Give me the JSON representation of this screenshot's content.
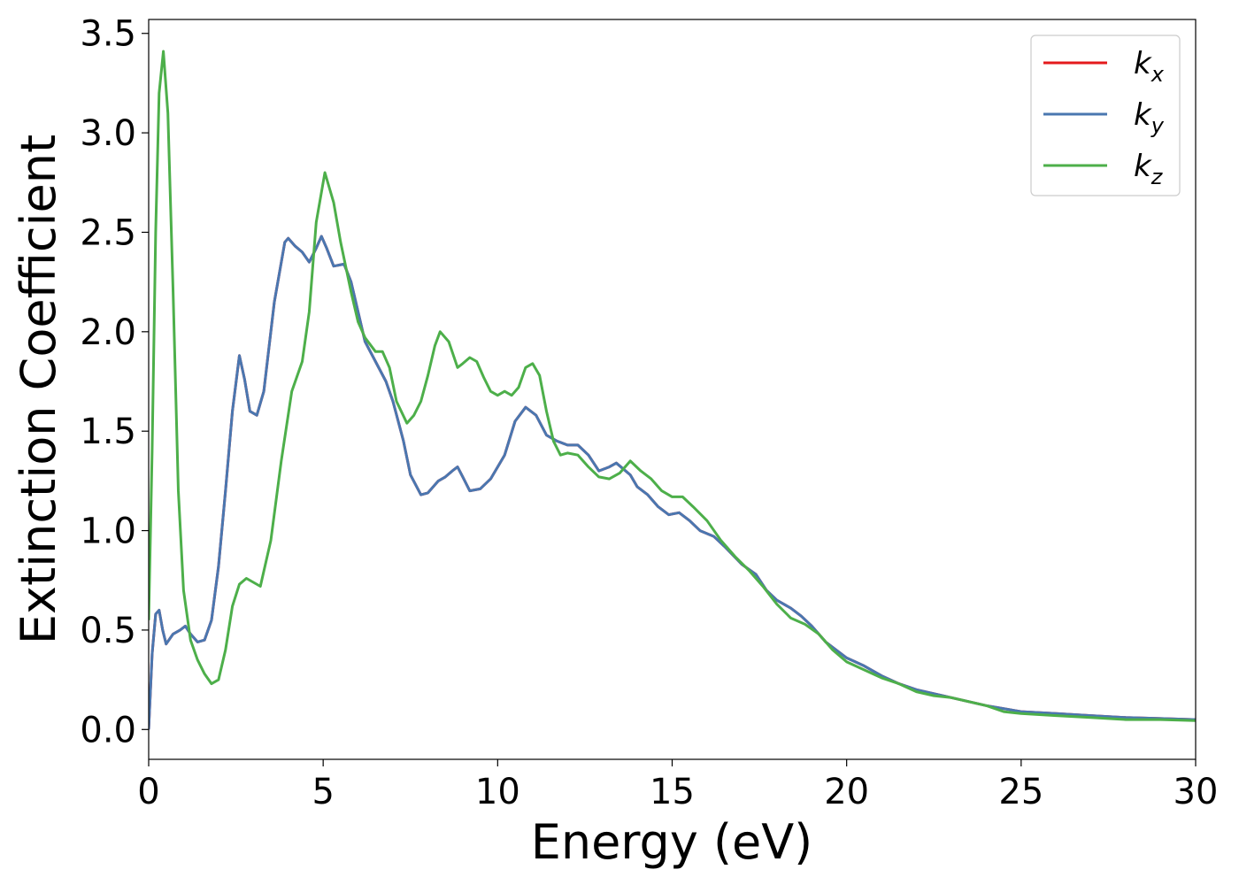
{
  "chart_data": {
    "type": "line",
    "title": "",
    "xlabel": "Energy (eV)",
    "ylabel": "Extinction Coefficient",
    "xlim": [
      0,
      30
    ],
    "ylim": [
      -0.15,
      3.57
    ],
    "xticks": [
      0,
      5,
      10,
      15,
      20,
      25,
      30
    ],
    "xtick_labels": [
      "0",
      "5",
      "10",
      "15",
      "20",
      "25",
      "30"
    ],
    "yticks": [
      0.0,
      0.5,
      1.0,
      1.5,
      2.0,
      2.5,
      3.0,
      3.5
    ],
    "ytick_labels": [
      "0.0",
      "0.5",
      "1.0",
      "1.5",
      "2.0",
      "2.5",
      "3.0",
      "3.5"
    ],
    "grid": false,
    "legend_position": "top-right",
    "series": [
      {
        "name": "k_x",
        "label_base": "k",
        "label_sub": "x",
        "color": "#e41a1c",
        "points": [
          [
            0,
            0
          ],
          [
            0.1,
            0.38
          ],
          [
            0.2,
            0.58
          ],
          [
            0.3,
            0.6
          ],
          [
            0.4,
            0.5
          ],
          [
            0.5,
            0.43
          ],
          [
            0.7,
            0.48
          ],
          [
            0.9,
            0.5
          ],
          [
            1.05,
            0.52
          ],
          [
            1.2,
            0.48
          ],
          [
            1.4,
            0.44
          ],
          [
            1.6,
            0.45
          ],
          [
            1.8,
            0.55
          ],
          [
            2.0,
            0.82
          ],
          [
            2.2,
            1.2
          ],
          [
            2.4,
            1.6
          ],
          [
            2.6,
            1.88
          ],
          [
            2.75,
            1.76
          ],
          [
            2.9,
            1.6
          ],
          [
            3.1,
            1.58
          ],
          [
            3.3,
            1.7
          ],
          [
            3.6,
            2.15
          ],
          [
            3.9,
            2.45
          ],
          [
            4.0,
            2.47
          ],
          [
            4.2,
            2.43
          ],
          [
            4.4,
            2.4
          ],
          [
            4.6,
            2.35
          ],
          [
            4.8,
            2.42
          ],
          [
            4.95,
            2.48
          ],
          [
            5.1,
            2.42
          ],
          [
            5.3,
            2.33
          ],
          [
            5.6,
            2.34
          ],
          [
            5.8,
            2.25
          ],
          [
            6.0,
            2.1
          ],
          [
            6.2,
            1.95
          ],
          [
            6.5,
            1.85
          ],
          [
            6.8,
            1.75
          ],
          [
            7.0,
            1.65
          ],
          [
            7.3,
            1.45
          ],
          [
            7.5,
            1.28
          ],
          [
            7.8,
            1.18
          ],
          [
            8.0,
            1.19
          ],
          [
            8.3,
            1.25
          ],
          [
            8.5,
            1.27
          ],
          [
            8.7,
            1.3
          ],
          [
            8.85,
            1.32
          ],
          [
            9.0,
            1.27
          ],
          [
            9.2,
            1.2
          ],
          [
            9.5,
            1.21
          ],
          [
            9.8,
            1.26
          ],
          [
            10.2,
            1.38
          ],
          [
            10.5,
            1.55
          ],
          [
            10.8,
            1.62
          ],
          [
            11.1,
            1.58
          ],
          [
            11.4,
            1.48
          ],
          [
            11.7,
            1.45
          ],
          [
            12.0,
            1.43
          ],
          [
            12.3,
            1.43
          ],
          [
            12.6,
            1.38
          ],
          [
            12.9,
            1.3
          ],
          [
            13.2,
            1.32
          ],
          [
            13.4,
            1.34
          ],
          [
            13.8,
            1.28
          ],
          [
            14.0,
            1.22
          ],
          [
            14.3,
            1.18
          ],
          [
            14.6,
            1.12
          ],
          [
            14.9,
            1.08
          ],
          [
            15.2,
            1.09
          ],
          [
            15.5,
            1.05
          ],
          [
            15.8,
            1.0
          ],
          [
            16.2,
            0.97
          ],
          [
            16.5,
            0.92
          ],
          [
            17.0,
            0.83
          ],
          [
            17.4,
            0.78
          ],
          [
            17.7,
            0.7
          ],
          [
            18.0,
            0.65
          ],
          [
            18.4,
            0.61
          ],
          [
            18.7,
            0.57
          ],
          [
            19.0,
            0.52
          ],
          [
            19.4,
            0.44
          ],
          [
            19.7,
            0.4
          ],
          [
            20.0,
            0.36
          ],
          [
            20.5,
            0.32
          ],
          [
            21.0,
            0.27
          ],
          [
            21.5,
            0.23
          ],
          [
            22.0,
            0.2
          ],
          [
            23.0,
            0.16
          ],
          [
            24.0,
            0.12
          ],
          [
            25.0,
            0.09
          ],
          [
            26.0,
            0.08
          ],
          [
            27.0,
            0.07
          ],
          [
            28.0,
            0.06
          ],
          [
            29.0,
            0.055
          ],
          [
            30.0,
            0.05
          ]
        ]
      },
      {
        "name": "k_y",
        "label_base": "k",
        "label_sub": "y",
        "color": "#4a77b0",
        "points": [
          [
            0,
            0
          ],
          [
            0.1,
            0.38
          ],
          [
            0.2,
            0.58
          ],
          [
            0.3,
            0.6
          ],
          [
            0.4,
            0.5
          ],
          [
            0.5,
            0.43
          ],
          [
            0.7,
            0.48
          ],
          [
            0.9,
            0.5
          ],
          [
            1.05,
            0.52
          ],
          [
            1.2,
            0.48
          ],
          [
            1.4,
            0.44
          ],
          [
            1.6,
            0.45
          ],
          [
            1.8,
            0.55
          ],
          [
            2.0,
            0.82
          ],
          [
            2.2,
            1.2
          ],
          [
            2.4,
            1.6
          ],
          [
            2.6,
            1.88
          ],
          [
            2.75,
            1.76
          ],
          [
            2.9,
            1.6
          ],
          [
            3.1,
            1.58
          ],
          [
            3.3,
            1.7
          ],
          [
            3.6,
            2.15
          ],
          [
            3.9,
            2.45
          ],
          [
            4.0,
            2.47
          ],
          [
            4.2,
            2.43
          ],
          [
            4.4,
            2.4
          ],
          [
            4.6,
            2.35
          ],
          [
            4.8,
            2.42
          ],
          [
            4.95,
            2.48
          ],
          [
            5.1,
            2.42
          ],
          [
            5.3,
            2.33
          ],
          [
            5.6,
            2.34
          ],
          [
            5.8,
            2.25
          ],
          [
            6.0,
            2.1
          ],
          [
            6.2,
            1.95
          ],
          [
            6.5,
            1.85
          ],
          [
            6.8,
            1.75
          ],
          [
            7.0,
            1.65
          ],
          [
            7.3,
            1.45
          ],
          [
            7.5,
            1.28
          ],
          [
            7.8,
            1.18
          ],
          [
            8.0,
            1.19
          ],
          [
            8.3,
            1.25
          ],
          [
            8.5,
            1.27
          ],
          [
            8.7,
            1.3
          ],
          [
            8.85,
            1.32
          ],
          [
            9.0,
            1.27
          ],
          [
            9.2,
            1.2
          ],
          [
            9.5,
            1.21
          ],
          [
            9.8,
            1.26
          ],
          [
            10.2,
            1.38
          ],
          [
            10.5,
            1.55
          ],
          [
            10.8,
            1.62
          ],
          [
            11.1,
            1.58
          ],
          [
            11.4,
            1.48
          ],
          [
            11.7,
            1.45
          ],
          [
            12.0,
            1.43
          ],
          [
            12.3,
            1.43
          ],
          [
            12.6,
            1.38
          ],
          [
            12.9,
            1.3
          ],
          [
            13.2,
            1.32
          ],
          [
            13.4,
            1.34
          ],
          [
            13.8,
            1.28
          ],
          [
            14.0,
            1.22
          ],
          [
            14.3,
            1.18
          ],
          [
            14.6,
            1.12
          ],
          [
            14.9,
            1.08
          ],
          [
            15.2,
            1.09
          ],
          [
            15.5,
            1.05
          ],
          [
            15.8,
            1.0
          ],
          [
            16.2,
            0.97
          ],
          [
            16.5,
            0.92
          ],
          [
            17.0,
            0.83
          ],
          [
            17.4,
            0.78
          ],
          [
            17.7,
            0.7
          ],
          [
            18.0,
            0.65
          ],
          [
            18.4,
            0.61
          ],
          [
            18.7,
            0.57
          ],
          [
            19.0,
            0.52
          ],
          [
            19.4,
            0.44
          ],
          [
            19.7,
            0.4
          ],
          [
            20.0,
            0.36
          ],
          [
            20.5,
            0.32
          ],
          [
            21.0,
            0.27
          ],
          [
            21.5,
            0.23
          ],
          [
            22.0,
            0.2
          ],
          [
            23.0,
            0.16
          ],
          [
            24.0,
            0.12
          ],
          [
            25.0,
            0.09
          ],
          [
            26.0,
            0.08
          ],
          [
            27.0,
            0.07
          ],
          [
            28.0,
            0.06
          ],
          [
            29.0,
            0.055
          ],
          [
            30.0,
            0.05
          ]
        ]
      },
      {
        "name": "k_z",
        "label_base": "k",
        "label_sub": "z",
        "color": "#4daf4a",
        "points": [
          [
            0,
            0.55
          ],
          [
            0.1,
            1.4
          ],
          [
            0.2,
            2.5
          ],
          [
            0.3,
            3.2
          ],
          [
            0.42,
            3.41
          ],
          [
            0.55,
            3.1
          ],
          [
            0.7,
            2.2
          ],
          [
            0.85,
            1.2
          ],
          [
            1.0,
            0.7
          ],
          [
            1.2,
            0.45
          ],
          [
            1.4,
            0.35
          ],
          [
            1.6,
            0.28
          ],
          [
            1.8,
            0.23
          ],
          [
            2.0,
            0.25
          ],
          [
            2.2,
            0.4
          ],
          [
            2.4,
            0.62
          ],
          [
            2.6,
            0.73
          ],
          [
            2.8,
            0.76
          ],
          [
            3.0,
            0.74
          ],
          [
            3.2,
            0.72
          ],
          [
            3.5,
            0.95
          ],
          [
            3.8,
            1.35
          ],
          [
            4.1,
            1.7
          ],
          [
            4.4,
            1.85
          ],
          [
            4.6,
            2.1
          ],
          [
            4.8,
            2.55
          ],
          [
            5.05,
            2.8
          ],
          [
            5.3,
            2.65
          ],
          [
            5.5,
            2.45
          ],
          [
            5.8,
            2.2
          ],
          [
            6.0,
            2.05
          ],
          [
            6.2,
            1.97
          ],
          [
            6.5,
            1.9
          ],
          [
            6.7,
            1.9
          ],
          [
            6.9,
            1.82
          ],
          [
            7.1,
            1.65
          ],
          [
            7.4,
            1.54
          ],
          [
            7.6,
            1.58
          ],
          [
            7.8,
            1.65
          ],
          [
            8.0,
            1.78
          ],
          [
            8.2,
            1.93
          ],
          [
            8.35,
            2.0
          ],
          [
            8.6,
            1.95
          ],
          [
            8.85,
            1.82
          ],
          [
            9.0,
            1.84
          ],
          [
            9.2,
            1.87
          ],
          [
            9.4,
            1.85
          ],
          [
            9.6,
            1.77
          ],
          [
            9.8,
            1.7
          ],
          [
            10.0,
            1.68
          ],
          [
            10.2,
            1.7
          ],
          [
            10.4,
            1.68
          ],
          [
            10.6,
            1.72
          ],
          [
            10.8,
            1.82
          ],
          [
            11.0,
            1.84
          ],
          [
            11.2,
            1.78
          ],
          [
            11.4,
            1.6
          ],
          [
            11.6,
            1.45
          ],
          [
            11.8,
            1.38
          ],
          [
            12.0,
            1.39
          ],
          [
            12.3,
            1.38
          ],
          [
            12.6,
            1.32
          ],
          [
            12.9,
            1.27
          ],
          [
            13.2,
            1.26
          ],
          [
            13.5,
            1.29
          ],
          [
            13.8,
            1.35
          ],
          [
            14.1,
            1.3
          ],
          [
            14.4,
            1.26
          ],
          [
            14.7,
            1.2
          ],
          [
            15.0,
            1.17
          ],
          [
            15.3,
            1.17
          ],
          [
            15.6,
            1.12
          ],
          [
            16.0,
            1.05
          ],
          [
            16.4,
            0.95
          ],
          [
            16.8,
            0.87
          ],
          [
            17.2,
            0.8
          ],
          [
            17.6,
            0.72
          ],
          [
            18.0,
            0.63
          ],
          [
            18.4,
            0.56
          ],
          [
            18.8,
            0.53
          ],
          [
            19.2,
            0.48
          ],
          [
            19.6,
            0.4
          ],
          [
            20.0,
            0.34
          ],
          [
            20.5,
            0.3
          ],
          [
            21.0,
            0.26
          ],
          [
            21.5,
            0.23
          ],
          [
            22.0,
            0.19
          ],
          [
            22.5,
            0.17
          ],
          [
            23.0,
            0.16
          ],
          [
            23.5,
            0.14
          ],
          [
            24.0,
            0.12
          ],
          [
            24.5,
            0.09
          ],
          [
            25.0,
            0.08
          ],
          [
            26.0,
            0.07
          ],
          [
            27.0,
            0.06
          ],
          [
            28.0,
            0.05
          ],
          [
            29.0,
            0.05
          ],
          [
            30.0,
            0.045
          ]
        ]
      }
    ]
  }
}
